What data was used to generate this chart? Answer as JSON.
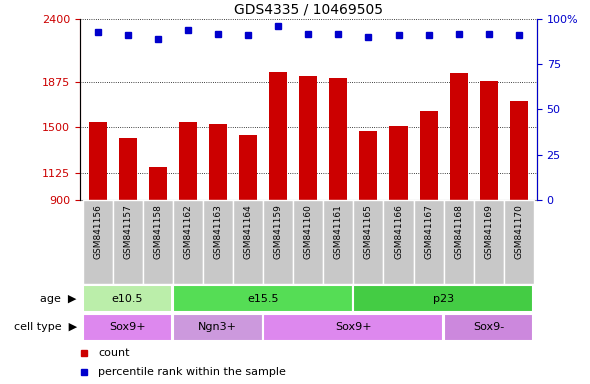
{
  "title": "GDS4335 / 10469505",
  "samples": [
    "GSM841156",
    "GSM841157",
    "GSM841158",
    "GSM841162",
    "GSM841163",
    "GSM841164",
    "GSM841159",
    "GSM841160",
    "GSM841161",
    "GSM841165",
    "GSM841166",
    "GSM841167",
    "GSM841168",
    "GSM841169",
    "GSM841170"
  ],
  "counts": [
    1545,
    1415,
    1175,
    1545,
    1530,
    1440,
    1960,
    1930,
    1915,
    1470,
    1510,
    1640,
    1950,
    1890,
    1720
  ],
  "percentile_ranks": [
    93,
    91,
    89,
    94,
    92,
    91,
    96,
    92,
    92,
    90,
    91,
    91,
    92,
    92,
    91
  ],
  "ylim_left": [
    900,
    2400
  ],
  "yticks_left": [
    900,
    1125,
    1500,
    1875,
    2400
  ],
  "ylim_right": [
    0,
    100
  ],
  "yticks_right": [
    0,
    25,
    50,
    75,
    100
  ],
  "bar_color": "#cc0000",
  "dot_color": "#0000cc",
  "age_groups": [
    {
      "label": "e10.5",
      "start": 0,
      "end": 3,
      "color": "#bbeeaa"
    },
    {
      "label": "e15.5",
      "start": 3,
      "end": 9,
      "color": "#55dd55"
    },
    {
      "label": "p23",
      "start": 9,
      "end": 15,
      "color": "#44cc44"
    }
  ],
  "cell_type_groups": [
    {
      "label": "Sox9+",
      "start": 0,
      "end": 3,
      "color": "#dd88ee"
    },
    {
      "label": "Ngn3+",
      "start": 3,
      "end": 6,
      "color": "#cc99dd"
    },
    {
      "label": "Sox9+",
      "start": 6,
      "end": 12,
      "color": "#dd88ee"
    },
    {
      "label": "Sox9-",
      "start": 12,
      "end": 15,
      "color": "#cc88dd"
    }
  ],
  "left_axis_color": "#cc0000",
  "right_axis_color": "#0000cc",
  "legend_count_color": "#cc0000",
  "legend_dot_color": "#0000cc",
  "bar_bottom": 900,
  "bg_color": "#ffffff"
}
